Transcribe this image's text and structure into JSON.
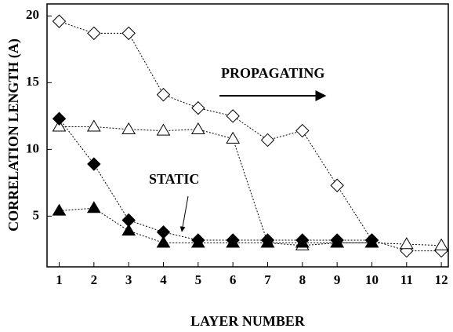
{
  "chart_data": {
    "type": "line",
    "xlabel": "LAYER NUMBER",
    "ylabel": "CORRELATION LENGTH (A)",
    "x": [
      1,
      2,
      3,
      4,
      5,
      6,
      7,
      8,
      9,
      10,
      11,
      12
    ],
    "xlim": [
      0.65,
      12.2
    ],
    "xticks": [
      1,
      2,
      3,
      4,
      5,
      6,
      7,
      8,
      9,
      10,
      11,
      12
    ],
    "ylim": [
      1.2,
      20.9
    ],
    "yticks": [
      5,
      10,
      15,
      20
    ],
    "series": [
      {
        "color": "#000000",
        "marker": "open-diamond",
        "values": [
          19.6,
          18.7,
          18.7,
          14.1,
          13.1,
          12.5,
          10.7,
          11.4,
          7.3,
          3.2,
          2.4,
          2.4
        ]
      },
      {
        "color": "#000000",
        "marker": "open-triangle",
        "values": [
          11.7,
          11.7,
          11.5,
          11.4,
          11.5,
          10.8,
          3.0,
          2.8,
          3.0,
          3.0,
          2.9,
          2.8
        ]
      },
      {
        "color": "#000000",
        "marker": "filled-diamond",
        "values": [
          12.3,
          8.9,
          4.7,
          3.8,
          3.2,
          3.2,
          3.2,
          3.2,
          3.2,
          3.2,
          null,
          null
        ]
      },
      {
        "color": "#000000",
        "marker": "filled-triangle",
        "values": [
          5.4,
          5.6,
          3.9,
          3.0,
          3.0,
          3.0,
          3.0,
          3.0,
          3.0,
          3.0,
          null,
          null
        ]
      }
    ],
    "annotations": [
      "PROPAGATING",
      "STATIC"
    ]
  }
}
